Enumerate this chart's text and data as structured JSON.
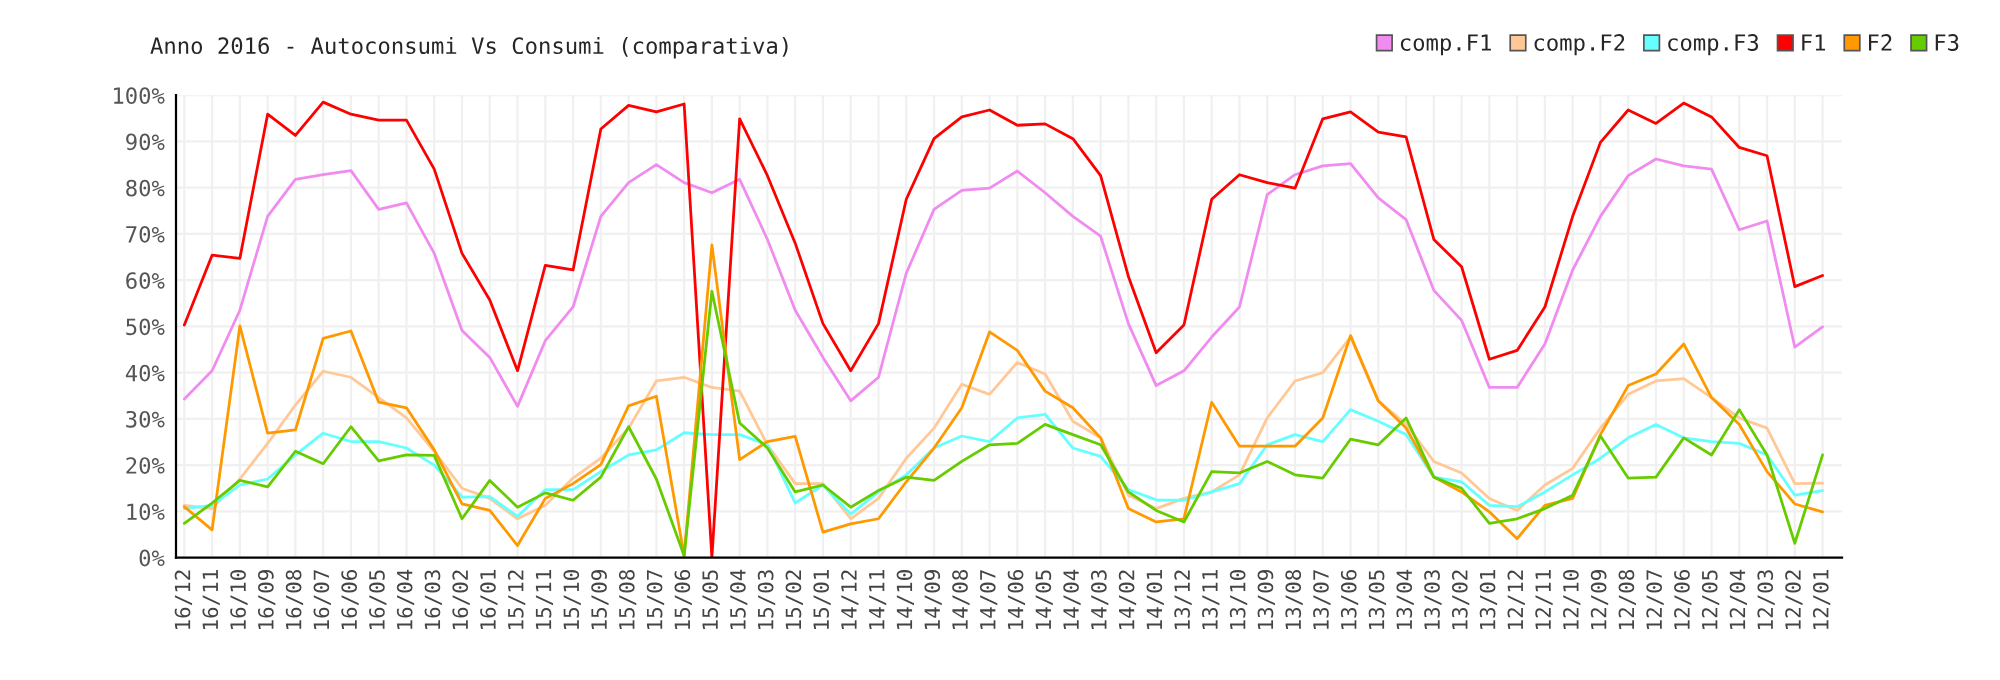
{
  "chart_data": {
    "type": "line",
    "title": "Anno 2016 - Autoconsumi Vs Consumi (comparativa)",
    "categories": [
      "16/12",
      "16/11",
      "16/10",
      "16/09",
      "16/08",
      "16/07",
      "16/06",
      "16/05",
      "16/04",
      "16/03",
      "16/02",
      "16/01",
      "15/12",
      "15/11",
      "15/10",
      "15/09",
      "15/08",
      "15/07",
      "15/06",
      "15/05",
      "15/04",
      "15/03",
      "15/02",
      "15/01",
      "14/12",
      "14/11",
      "14/10",
      "14/09",
      "14/08",
      "14/07",
      "14/06",
      "14/05",
      "14/04",
      "14/03",
      "14/02",
      "14/01",
      "13/12",
      "13/11",
      "13/10",
      "13/09",
      "13/08",
      "13/07",
      "13/06",
      "13/05",
      "13/04",
      "13/03",
      "13/02",
      "13/01",
      "12/12",
      "12/11",
      "12/10",
      "12/09",
      "12/08",
      "12/07",
      "12/06",
      "12/05",
      "12/04",
      "12/03",
      "12/02",
      "12/01"
    ],
    "series": [
      {
        "name": "comp.F1",
        "color": "#f08cf0",
        "values": [
          34.3,
          40.4,
          53.5,
          73.8,
          81.8,
          82.8,
          83.7,
          75.3,
          76.7,
          65.8,
          49.1,
          43.3,
          32.7,
          46.9,
          54.2,
          73.8,
          81.1,
          85,
          81.1,
          78.9,
          81.8,
          68.8,
          53.5,
          43.3,
          33.9,
          39,
          61.5,
          75.3,
          79.4,
          79.9,
          83.6,
          78.9,
          73.8,
          69.5,
          50.6,
          37.2,
          40.4,
          47.7,
          54.2,
          78.5,
          82.8,
          84.7,
          85.2,
          77.8,
          73.1,
          57.8,
          51.3,
          36.8,
          36.8,
          46.2,
          62.2,
          73.8,
          82.6,
          86.2,
          84.7,
          84,
          70.9,
          72.8,
          45.5,
          49.9
        ]
      },
      {
        "name": "comp.F2",
        "color": "#ffc896",
        "values": [
          11.3,
          10.6,
          17,
          24.7,
          33,
          40.3,
          39,
          34.6,
          30.2,
          23,
          15,
          12.8,
          8.4,
          11.3,
          17.2,
          21.5,
          28,
          38.2,
          39,
          36.8,
          36,
          24.4,
          16,
          16,
          8.4,
          12.8,
          21.5,
          28,
          37.5,
          35.3,
          42.2,
          39.7,
          29.5,
          25.9,
          13.5,
          10.6,
          12.8,
          14.2,
          17.9,
          30.2,
          38.2,
          40,
          47.7,
          33.9,
          28.8,
          20.8,
          18.3,
          12.8,
          10.2,
          15.7,
          19.3,
          28,
          35.3,
          38.2,
          38.7,
          34.6,
          30.2,
          28,
          16,
          16.1
        ]
      },
      {
        "name": "comp.F3",
        "color": "#66ffff",
        "values": [
          10.6,
          11.3,
          15.7,
          17,
          22.2,
          26.9,
          25.1,
          25.1,
          23.7,
          20,
          13.1,
          13.2,
          8.9,
          14.7,
          14.7,
          18.6,
          22.2,
          23.3,
          27,
          26.6,
          26.6,
          24.4,
          11.8,
          15.7,
          9.4,
          14.2,
          17.9,
          23.7,
          26.3,
          25.1,
          30.2,
          31,
          23.7,
          21.9,
          14.7,
          12.5,
          12.4,
          14.2,
          16,
          24.4,
          26.6,
          25.1,
          32,
          29.5,
          26.6,
          17.4,
          16.4,
          11.3,
          11,
          14.2,
          17.9,
          21.5,
          25.9,
          28.8,
          25.9,
          25.1,
          24.7,
          22.2,
          13.5,
          14.5
        ]
      },
      {
        "name": "F1",
        "color": "#ff0000",
        "values": [
          50.3,
          65.4,
          64.7,
          95.9,
          91.3,
          98.5,
          95.9,
          94.6,
          94.6,
          84,
          65.8,
          55.7,
          40.4,
          63.2,
          62.2,
          92.7,
          97.8,
          96.4,
          98.1,
          0,
          94.9,
          82.6,
          68,
          50.6,
          40.4,
          50.6,
          77.5,
          90.6,
          95.3,
          96.8,
          93.5,
          93.8,
          90.6,
          82.6,
          60.8,
          44.3,
          50.3,
          77.5,
          82.8,
          81.1,
          79.9,
          94.9,
          96.4,
          92,
          91,
          68.8,
          62.9,
          42.9,
          44.8,
          54.2,
          73.8,
          89.8,
          96.8,
          93.9,
          98.3,
          95.3,
          88.7,
          86.9,
          58.6,
          61
        ]
      },
      {
        "name": "F2",
        "color": "#ff9900",
        "values": [
          11,
          6,
          50.1,
          26.9,
          27.6,
          47.4,
          49,
          33.6,
          32.4,
          23.3,
          11.6,
          10.2,
          2.6,
          12.8,
          16,
          20.1,
          32.8,
          34.9,
          0.4,
          67.6,
          21.2,
          25.1,
          26.2,
          5.5,
          7.3,
          8.4,
          16.4,
          23.7,
          32.4,
          48.8,
          44.8,
          36,
          32.4,
          25.9,
          10.6,
          7.7,
          8.4,
          33.6,
          24.1,
          24.1,
          24.1,
          30.2,
          48,
          33.9,
          28,
          17.4,
          14.2,
          9.9,
          4.1,
          11.3,
          12.8,
          26.6,
          37.2,
          39.7,
          46.2,
          34.6,
          28.8,
          18.6,
          11.6,
          9.9
        ]
      },
      {
        "name": "F3",
        "color": "#66cc00",
        "values": [
          7.4,
          11.8,
          16.7,
          15.3,
          23,
          20.3,
          28.3,
          20.9,
          22.2,
          22.1,
          8.4,
          16.7,
          10.9,
          14,
          12.4,
          17.4,
          28.3,
          17,
          0.4,
          57.6,
          29.1,
          23.7,
          14.2,
          15.7,
          10.9,
          14.5,
          17.4,
          16.7,
          20.8,
          24.4,
          24.7,
          28.8,
          26.6,
          24.4,
          14.2,
          10.2,
          7.7,
          18.6,
          18.3,
          20.8,
          17.9,
          17.2,
          25.6,
          24.4,
          30.2,
          17.4,
          15,
          7.4,
          8.4,
          10.6,
          13.5,
          26.3,
          17.2,
          17.4,
          25.9,
          22.2,
          32,
          22.2,
          3.1,
          22.2
        ]
      }
    ],
    "ylim": [
      0,
      100
    ],
    "yticks": [
      {
        "value": 0,
        "label": "0%"
      },
      {
        "value": 10,
        "label": "10%"
      },
      {
        "value": 20,
        "label": "20%"
      },
      {
        "value": 30,
        "label": "30%"
      },
      {
        "value": 40,
        "label": "40%"
      },
      {
        "value": 50,
        "label": "50%"
      },
      {
        "value": 60,
        "label": "60%"
      },
      {
        "value": 70,
        "label": "70%"
      },
      {
        "value": 80,
        "label": "80%"
      },
      {
        "value": 90,
        "label": "90%"
      },
      {
        "value": 100,
        "label": "100%"
      }
    ],
    "grid": true,
    "legend": "top right",
    "marker": "none",
    "line_style": "solid"
  }
}
